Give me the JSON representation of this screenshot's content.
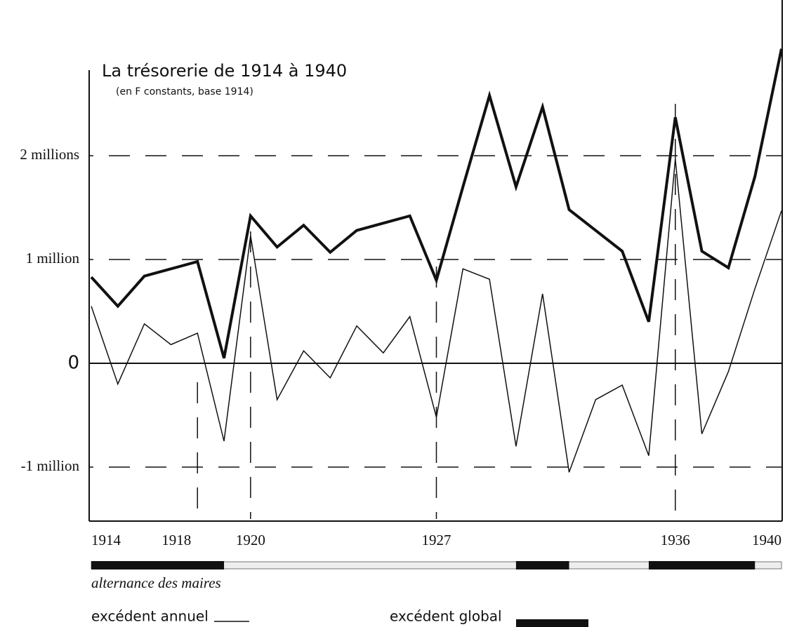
{
  "chart_data": {
    "type": "line",
    "title": "La trésorerie de 1914 à 1940",
    "subtitle": "(en F constants, base 1914)",
    "x": [
      1914,
      1915,
      1916,
      1917,
      1918,
      1919,
      1920,
      1921,
      1922,
      1923,
      1924,
      1925,
      1926,
      1927,
      1928,
      1929,
      1930,
      1931,
      1932,
      1933,
      1934,
      1935,
      1936,
      1937,
      1938,
      1939,
      1940
    ],
    "series": [
      {
        "name": "excédent annuel",
        "color": "#111111",
        "width": 1.5,
        "values": [
          0.55,
          -0.2,
          0.38,
          0.18,
          0.29,
          -0.75,
          1.23,
          -0.35,
          0.12,
          -0.14,
          0.36,
          0.1,
          0.45,
          -0.52,
          0.91,
          0.81,
          -0.8,
          0.67,
          -1.05,
          -0.35,
          -0.21,
          -0.89,
          1.97,
          -0.68,
          -0.08,
          0.72,
          1.47
        ]
      },
      {
        "name": "excédent global",
        "color": "#111111",
        "width": 4,
        "values": [
          0.83,
          0.55,
          0.84,
          0.91,
          0.98,
          0.05,
          1.42,
          1.12,
          1.33,
          1.07,
          1.28,
          1.35,
          1.42,
          0.8,
          1.7,
          2.58,
          1.7,
          2.47,
          1.48,
          1.28,
          1.08,
          0.4,
          2.37,
          1.08,
          0.92,
          1.8,
          3.03
        ]
      }
    ],
    "xlim": [
      1914,
      1940
    ],
    "xticks": [
      1914,
      1918,
      1920,
      1927,
      1936,
      1940
    ],
    "ylim": [
      -1.5,
      3.5
    ],
    "yticks": [
      {
        "value": 2,
        "label": "2 millions"
      },
      {
        "value": 1,
        "label": "1 million"
      },
      0,
      {
        "value": -1,
        "label": "-1 million"
      }
    ],
    "grid": true,
    "mayor_label": "alternance des maires",
    "mayor_periods": [
      [
        1914,
        1919
      ],
      [
        1930,
        1932
      ],
      [
        1935,
        1939
      ]
    ]
  }
}
